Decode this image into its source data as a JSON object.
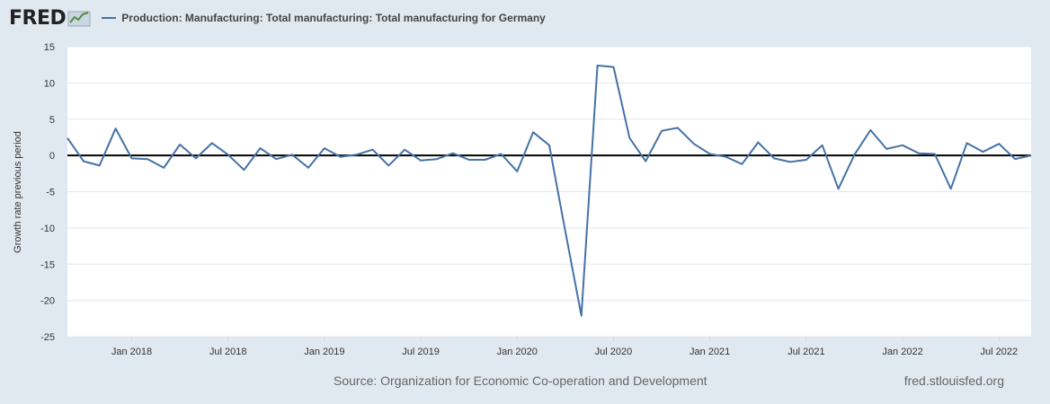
{
  "brand": {
    "logo_text": "FRED",
    "logo_icon": "fred-chart-icon"
  },
  "colors": {
    "background": "#e1e9f0",
    "plot_bg": "#ffffff",
    "series": "#4572a7",
    "zero_line": "#000000",
    "grid": "#e6e6e6"
  },
  "footer": {
    "source": "Source: Organization for Economic Co-operation and Development",
    "url": "fred.stlouisfed.org"
  },
  "chart_data": {
    "type": "line",
    "legend_position": "top-left",
    "grid": true,
    "ylabel": "Growth rate previous period",
    "ylim": [
      -25,
      15
    ],
    "yticks": [
      15,
      10,
      5,
      0,
      -5,
      -10,
      -15,
      -20,
      -25
    ],
    "xlim": [
      "2017-09",
      "2022-09"
    ],
    "xticks": [
      {
        "label": "Jan 2018",
        "date": "2018-01"
      },
      {
        "label": "Jul 2018",
        "date": "2018-07"
      },
      {
        "label": "Jan 2019",
        "date": "2019-01"
      },
      {
        "label": "Jul 2019",
        "date": "2019-07"
      },
      {
        "label": "Jan 2020",
        "date": "2020-01"
      },
      {
        "label": "Jul 2020",
        "date": "2020-07"
      },
      {
        "label": "Jan 2021",
        "date": "2021-01"
      },
      {
        "label": "Jul 2021",
        "date": "2021-07"
      },
      {
        "label": "Jan 2022",
        "date": "2022-01"
      },
      {
        "label": "Jul 2022",
        "date": "2022-07"
      }
    ],
    "series": [
      {
        "name": "Production: Manufacturing: Total manufacturing: Total manufacturing for Germany",
        "x": [
          "2017-09",
          "2017-10",
          "2017-11",
          "2017-12",
          "2018-01",
          "2018-02",
          "2018-03",
          "2018-04",
          "2018-05",
          "2018-06",
          "2018-07",
          "2018-08",
          "2018-09",
          "2018-10",
          "2018-11",
          "2018-12",
          "2019-01",
          "2019-02",
          "2019-03",
          "2019-04",
          "2019-05",
          "2019-06",
          "2019-07",
          "2019-08",
          "2019-09",
          "2019-10",
          "2019-11",
          "2019-12",
          "2020-01",
          "2020-02",
          "2020-03",
          "2020-04",
          "2020-05",
          "2020-06",
          "2020-07",
          "2020-08",
          "2020-09",
          "2020-10",
          "2020-11",
          "2020-12",
          "2021-01",
          "2021-02",
          "2021-03",
          "2021-04",
          "2021-05",
          "2021-06",
          "2021-07",
          "2021-08",
          "2021-09",
          "2021-10",
          "2021-11",
          "2021-12",
          "2022-01",
          "2022-02",
          "2022-03",
          "2022-04",
          "2022-05",
          "2022-06",
          "2022-07",
          "2022-08",
          "2022-09"
        ],
        "values": [
          2.4,
          -0.8,
          -1.4,
          3.7,
          -0.4,
          -0.5,
          -1.7,
          1.5,
          -0.4,
          1.7,
          0.1,
          -2.0,
          1.0,
          -0.5,
          0.1,
          -1.7,
          1.0,
          -0.2,
          0.1,
          0.8,
          -1.4,
          0.8,
          -0.7,
          -0.5,
          0.3,
          -0.6,
          -0.6,
          0.2,
          -2.2,
          3.2,
          1.4,
          -10.5,
          -22.1,
          12.4,
          12.2,
          2.4,
          -0.8,
          3.4,
          3.8,
          1.6,
          0.2,
          -0.2,
          -1.2,
          1.8,
          -0.4,
          -0.9,
          -0.6,
          1.4,
          -4.6,
          0.1,
          3.5,
          0.9,
          1.4,
          0.3,
          0.2,
          -4.6,
          1.7,
          0.5,
          1.6,
          -0.5,
          0.0
        ]
      }
    ]
  }
}
